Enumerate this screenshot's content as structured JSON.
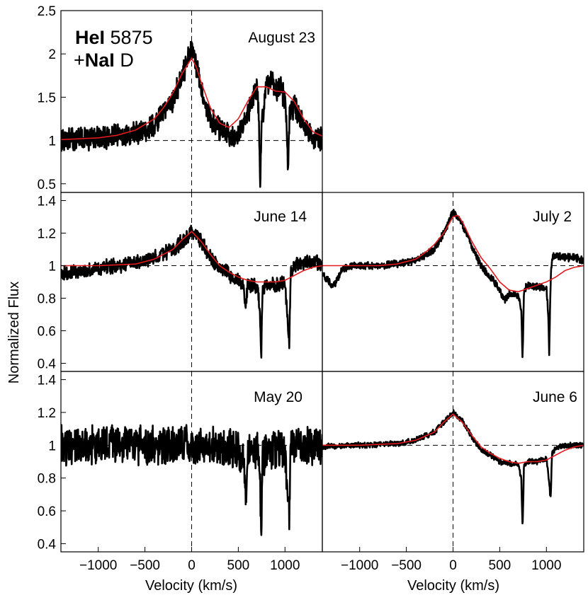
{
  "figure": {
    "ylabel": "Normalized Flux",
    "xlabel": "Velocity  (km/s)",
    "annotation": {
      "line1_bold": "HeI",
      "line1_rest": " 5875",
      "line2_prefix": "+",
      "line2_bold": "NaI",
      "line2_rest": " D"
    },
    "colors": {
      "observed": "#000000",
      "model": "#e41a1c",
      "reference": "#000000"
    }
  },
  "chart_data": [
    {
      "type": "line",
      "panel": "August 23",
      "title": "August 23",
      "xlim": [
        -1400,
        1400
      ],
      "ylim": [
        0.4,
        2.5
      ],
      "yticks": [
        0.5,
        1,
        1.5,
        2,
        2.5
      ],
      "ytick_labels": [
        "0.5",
        "1",
        "1.5",
        "2",
        "2.5"
      ],
      "grid": false,
      "noise": 0.12,
      "reference_lines": {
        "y": 1,
        "x": 0
      },
      "series": [
        {
          "role": "observed",
          "x": [
            -1400,
            -1200,
            -1000,
            -800,
            -600,
            -400,
            -200,
            -100,
            0,
            50,
            100,
            200,
            300,
            400,
            500,
            600,
            650,
            700,
            720,
            735,
            750,
            800,
            850,
            900,
            950,
            1000,
            1020,
            1030,
            1050,
            1100,
            1200,
            1300,
            1400
          ],
          "y": [
            1.0,
            1.02,
            1.03,
            1.05,
            1.08,
            1.18,
            1.45,
            1.75,
            2.05,
            1.85,
            1.6,
            1.25,
            1.15,
            1.05,
            1.1,
            1.3,
            1.5,
            1.6,
            1.3,
            0.5,
            1.2,
            1.65,
            1.7,
            1.55,
            1.6,
            1.5,
            1.1,
            0.65,
            1.3,
            1.4,
            1.2,
            1.05,
            1.0
          ]
        },
        {
          "role": "model",
          "x": [
            -1400,
            -1000,
            -800,
            -600,
            -400,
            -300,
            -200,
            -100,
            0,
            50,
            100,
            200,
            300,
            400,
            500,
            600,
            700,
            800,
            900,
            1000,
            1100,
            1200,
            1300,
            1400
          ],
          "y": [
            1.01,
            1.03,
            1.06,
            1.12,
            1.25,
            1.38,
            1.55,
            1.78,
            1.95,
            1.85,
            1.68,
            1.38,
            1.2,
            1.15,
            1.25,
            1.45,
            1.62,
            1.62,
            1.57,
            1.56,
            1.45,
            1.25,
            1.1,
            1.05
          ]
        }
      ]
    },
    {
      "type": "line",
      "panel": "June 14",
      "title": "June 14",
      "xlim": [
        -1400,
        1400
      ],
      "ylim": [
        0.35,
        1.45
      ],
      "yticks": [
        0.4,
        0.6,
        0.8,
        1,
        1.2,
        1.4
      ],
      "ytick_labels": [
        "0.4",
        "0.6",
        "0.8",
        "1",
        "1.2",
        "1.4"
      ],
      "grid": false,
      "noise": 0.04,
      "reference_lines": {
        "y": 1,
        "x": 0
      },
      "series": [
        {
          "role": "observed",
          "x": [
            -1400,
            -1000,
            -800,
            -600,
            -400,
            -200,
            0,
            100,
            200,
            300,
            400,
            500,
            550,
            580,
            600,
            650,
            700,
            730,
            745,
            760,
            800,
            900,
            1000,
            1030,
            1045,
            1060,
            1100,
            1200,
            1300,
            1400
          ],
          "y": [
            0.95,
            0.98,
            1.0,
            1.02,
            1.05,
            1.1,
            1.2,
            1.15,
            1.05,
            0.98,
            0.95,
            0.9,
            0.88,
            0.75,
            0.88,
            0.88,
            0.86,
            0.75,
            0.42,
            0.85,
            0.88,
            0.88,
            0.9,
            0.65,
            0.5,
            0.95,
            1.0,
            1.02,
            1.03,
            1.0
          ]
        },
        {
          "role": "model",
          "x": [
            -1400,
            -1000,
            -600,
            -400,
            -200,
            -100,
            0,
            100,
            200,
            300,
            400,
            500,
            600,
            700,
            800,
            900,
            1000,
            1100,
            1200,
            1300,
            1400
          ],
          "y": [
            1.0,
            1.0,
            1.01,
            1.04,
            1.1,
            1.16,
            1.21,
            1.15,
            1.07,
            1.0,
            0.96,
            0.93,
            0.91,
            0.9,
            0.9,
            0.9,
            0.91,
            0.94,
            0.97,
            0.99,
            1.0
          ]
        }
      ]
    },
    {
      "type": "line",
      "panel": "July 2",
      "title": "July 2",
      "xlim": [
        -1400,
        1400
      ],
      "ylim": [
        0.35,
        1.45
      ],
      "grid": false,
      "noise": 0.02,
      "reference_lines": {
        "y": 1,
        "x": 0
      },
      "series": [
        {
          "role": "observed",
          "x": [
            -1400,
            -1300,
            -1250,
            -1200,
            -1100,
            -1000,
            -800,
            -600,
            -400,
            -200,
            -100,
            0,
            100,
            200,
            300,
            400,
            500,
            550,
            600,
            700,
            730,
            745,
            760,
            800,
            900,
            1000,
            1020,
            1030,
            1045,
            1060,
            1100,
            1200,
            1300,
            1400
          ],
          "y": [
            0.95,
            0.88,
            0.9,
            0.97,
            1.0,
            1.0,
            1.0,
            1.01,
            1.03,
            1.1,
            1.2,
            1.33,
            1.25,
            1.12,
            1.0,
            0.93,
            0.85,
            0.78,
            0.83,
            0.82,
            0.72,
            0.43,
            0.85,
            0.88,
            0.87,
            0.86,
            0.7,
            0.45,
            0.9,
            1.05,
            1.06,
            1.05,
            1.05,
            1.03
          ]
        },
        {
          "role": "model",
          "x": [
            -1400,
            -800,
            -600,
            -400,
            -300,
            -200,
            -100,
            0,
            50,
            100,
            200,
            300,
            400,
            500,
            600,
            700,
            800,
            900,
            1000,
            1100,
            1200,
            1300,
            1400
          ],
          "y": [
            1.0,
            1.0,
            1.01,
            1.04,
            1.08,
            1.13,
            1.2,
            1.3,
            1.31,
            1.27,
            1.15,
            1.05,
            0.98,
            0.9,
            0.85,
            0.84,
            0.86,
            0.88,
            0.9,
            0.93,
            0.97,
            0.99,
            1.0
          ]
        }
      ]
    },
    {
      "type": "line",
      "panel": "May 20",
      "title": "May 20",
      "xlim": [
        -1400,
        1400
      ],
      "ylim": [
        0.35,
        1.45
      ],
      "yticks": [
        0.4,
        0.6,
        0.8,
        1,
        1.2,
        1.4
      ],
      "ytick_labels": [
        "0.4",
        "0.6",
        "0.8",
        "1",
        "1.2",
        "1.4"
      ],
      "xticks": [
        -1000,
        -500,
        0,
        500,
        1000
      ],
      "xtick_labels": [
        "−1000",
        "−500",
        "0",
        "500",
        "1000"
      ],
      "grid": false,
      "noise": 0.1,
      "reference_lines": {
        "y": 1,
        "x": 0
      },
      "series": [
        {
          "role": "observed",
          "x": [
            -1400,
            -1000,
            -500,
            0,
            500,
            550,
            580,
            600,
            700,
            730,
            745,
            760,
            800,
            1000,
            1030,
            1045,
            1060,
            1400
          ],
          "y": [
            1.0,
            1.0,
            1.0,
            1.0,
            0.98,
            0.9,
            0.7,
            0.95,
            0.98,
            0.85,
            0.42,
            0.9,
            0.98,
            0.98,
            0.7,
            0.55,
            1.0,
            1.0
          ]
        }
      ]
    },
    {
      "type": "line",
      "panel": "June 6",
      "title": "June 6",
      "xlim": [
        -1400,
        1400
      ],
      "ylim": [
        0.35,
        1.45
      ],
      "xticks": [
        -1000,
        -500,
        0,
        500,
        1000
      ],
      "xtick_labels": [
        "−1000",
        "−500",
        "0",
        "500",
        "1000"
      ],
      "grid": false,
      "noise": 0.015,
      "reference_lines": {
        "y": 1,
        "x": 0
      },
      "series": [
        {
          "role": "observed",
          "x": [
            -1400,
            -1000,
            -600,
            -400,
            -200,
            -100,
            0,
            100,
            200,
            300,
            400,
            500,
            600,
            700,
            730,
            745,
            760,
            800,
            900,
            1000,
            1030,
            1045,
            1060,
            1100,
            1200,
            1300,
            1400
          ],
          "y": [
            0.99,
            1.0,
            1.01,
            1.03,
            1.08,
            1.14,
            1.2,
            1.15,
            1.05,
            0.98,
            0.94,
            0.9,
            0.89,
            0.88,
            0.8,
            0.48,
            0.88,
            0.9,
            0.9,
            0.92,
            0.78,
            0.67,
            0.95,
            0.98,
            1.0,
            1.0,
            1.0
          ]
        },
        {
          "role": "model",
          "x": [
            -1400,
            -1000,
            -600,
            -400,
            -200,
            -100,
            0,
            100,
            200,
            300,
            400,
            500,
            600,
            700,
            800,
            900,
            1000,
            1100,
            1200,
            1300,
            1400
          ],
          "y": [
            1.0,
            1.0,
            1.01,
            1.03,
            1.08,
            1.14,
            1.19,
            1.14,
            1.06,
            0.99,
            0.95,
            0.92,
            0.9,
            0.89,
            0.9,
            0.9,
            0.91,
            0.94,
            0.97,
            0.99,
            1.0
          ]
        }
      ]
    }
  ]
}
